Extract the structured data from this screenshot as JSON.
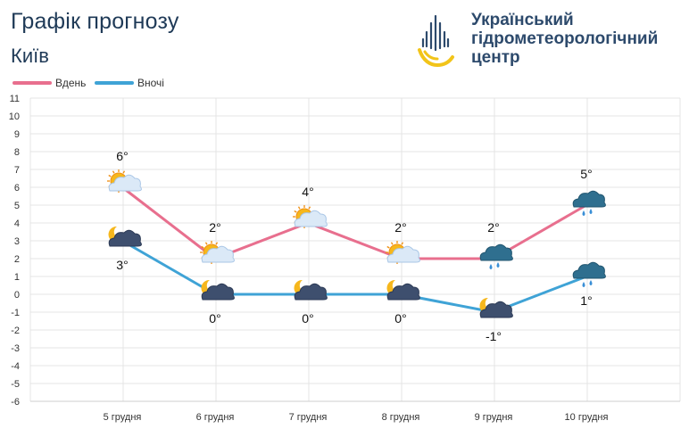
{
  "title": "Графік прогнозу",
  "city": "Київ",
  "logo": {
    "lines": [
      "Український",
      "гідрометеорологічний",
      "центр"
    ]
  },
  "colors": {
    "day": "#e86f8e",
    "night": "#3fa3d6",
    "title": "#1f3a57",
    "grid": "#e4e4e4"
  },
  "chart_data": {
    "type": "line",
    "categories": [
      "5 грудня",
      "6 грудня",
      "7 грудня",
      "8 грудня",
      "9 грудня",
      "10 грудня"
    ],
    "ylim": [
      -6,
      11
    ],
    "yticks": [
      11,
      10,
      9,
      8,
      7,
      6,
      5,
      4,
      3,
      2,
      1,
      0,
      -1,
      -2,
      -3,
      -4,
      -5,
      -6
    ],
    "grid": true,
    "legend": "top-left",
    "series": [
      {
        "name": "Вдень",
        "key": "day",
        "values": [
          6,
          2,
          4,
          2,
          2,
          5
        ],
        "labels": [
          "6°",
          "2°",
          "4°",
          "2°",
          "2°",
          "5°"
        ],
        "icons": [
          "sun-cloud-icon",
          "sun-cloud-icon",
          "sun-cloud-icon",
          "sun-cloud-icon",
          "rain-cloud-icon",
          "rain-cloud-icon"
        ]
      },
      {
        "name": "Вночі",
        "key": "night",
        "values": [
          3,
          0,
          0,
          0,
          -1,
          1
        ],
        "labels": [
          "3°",
          "0°",
          "0°",
          "0°",
          "-1°",
          "1°"
        ],
        "icons": [
          "moon-cloud-icon",
          "moon-cloud-icon",
          "moon-cloud-icon",
          "moon-cloud-icon",
          "moon-cloud-icon",
          "rain-cloud-icon"
        ]
      }
    ]
  }
}
